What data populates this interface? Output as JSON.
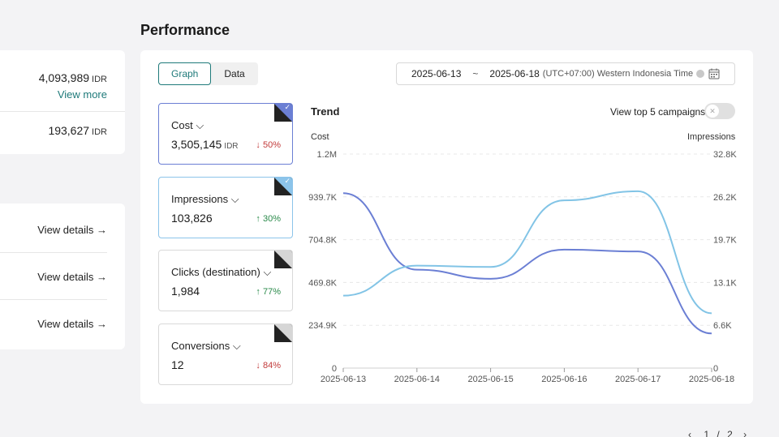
{
  "left_summary": {
    "top_value": "4,093,989",
    "top_unit": "IDR",
    "view_more": "View more",
    "second_value": "193,627",
    "second_unit": "IDR"
  },
  "left_links": [
    "View details →",
    "View details →",
    "View details →"
  ],
  "page_title": "Performance",
  "view_tabs": {
    "graph": "Graph",
    "data": "Data"
  },
  "date_range": {
    "start": "2025-06-13",
    "separator": "~",
    "end": "2025-06-18",
    "timezone": "(UTC+07:00) Western Indonesia Time"
  },
  "metrics": [
    {
      "label": "Cost",
      "value": "3,505,145",
      "unit": "IDR",
      "change": "↓ 50%",
      "direction": "down",
      "selected": true,
      "corner_color": "#6b7fd4"
    },
    {
      "label": "Impressions",
      "value": "103,826",
      "unit": "",
      "change": "↑ 30%",
      "direction": "up",
      "selected": true,
      "corner_color": "#8cc4ea"
    },
    {
      "label": "Clicks (destination)",
      "value": "1,984",
      "unit": "",
      "change": "↑ 77%",
      "direction": "up",
      "selected": false,
      "corner_color": "#d6d6d6"
    },
    {
      "label": "Conversions",
      "value": "12",
      "unit": "",
      "change": "↓ 84%",
      "direction": "down",
      "selected": false,
      "corner_color": "#d6d6d6"
    }
  ],
  "trend": {
    "title": "Trend",
    "top5_label": "View top 5 campaigns",
    "top5_enabled": false
  },
  "chart_data": {
    "type": "line",
    "x": [
      "2025-06-13",
      "2025-06-14",
      "2025-06-15",
      "2025-06-16",
      "2025-06-17",
      "2025-06-18"
    ],
    "ylabel_left": "Cost",
    "ylabel_right": "Impressions",
    "y_left_ticks": [
      "0",
      "234.9K",
      "469.8K",
      "704.8K",
      "939.7K",
      "1.2M"
    ],
    "y_right_ticks": [
      "0",
      "6.6K",
      "13.1K",
      "19.7K",
      "26.2K",
      "32.8K"
    ],
    "y_left_range": [
      0,
      1174600
    ],
    "y_right_range": [
      0,
      32800
    ],
    "grid": true,
    "series": [
      {
        "name": "Cost",
        "axis": "left",
        "color": "#6b7fd4",
        "values": [
          960000,
          540000,
          490000,
          650000,
          640000,
          190000
        ]
      },
      {
        "name": "Impressions",
        "axis": "right",
        "color": "#82c4e6",
        "values": [
          11100,
          15700,
          15500,
          25700,
          27100,
          8400
        ]
      }
    ]
  },
  "pager": {
    "current": "1",
    "total": "2"
  },
  "colors": {
    "accent": "#1f7a7a",
    "down": "#c23b3b",
    "up": "#2a8a4a"
  }
}
